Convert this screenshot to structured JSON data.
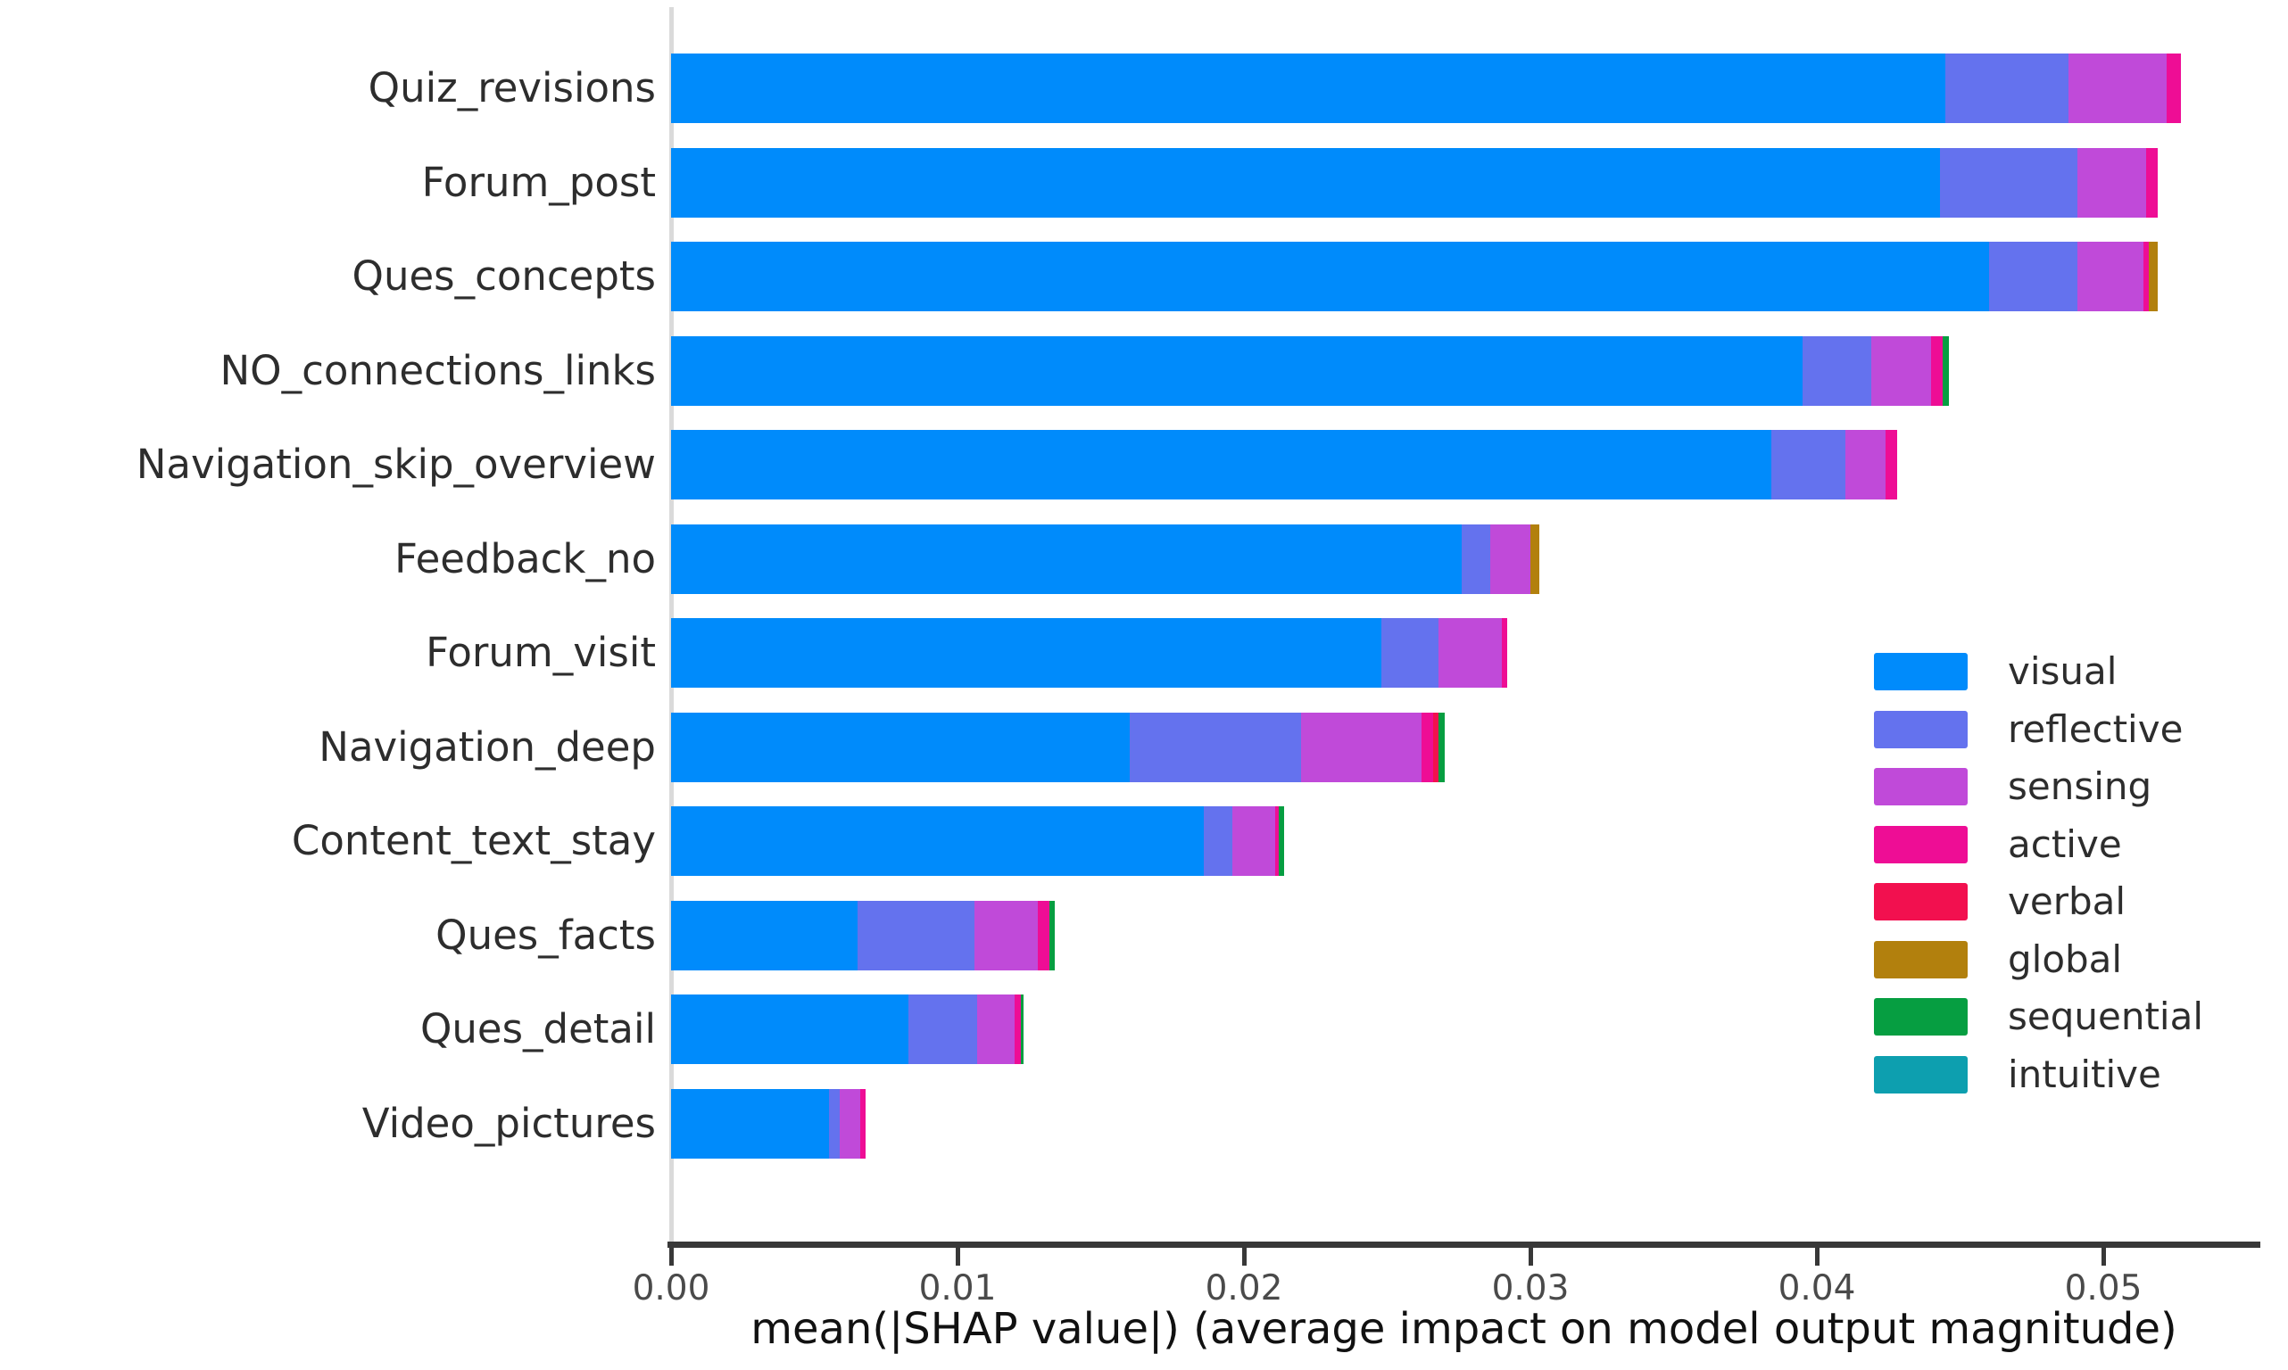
{
  "chart_data": {
    "type": "bar",
    "orientation": "horizontal",
    "stacked": true,
    "title": "",
    "xlabel": "mean(|SHAP value|) (average impact on model output magnitude)",
    "ylabel": "",
    "xlim": [
      0,
      0.0555
    ],
    "grid": false,
    "legend_position": "center-right",
    "x_tick_values": [
      0.0,
      0.01,
      0.02,
      0.03,
      0.04,
      0.05
    ],
    "x_tick_labels": [
      "0.00",
      "0.01",
      "0.02",
      "0.03",
      "0.04",
      "0.05"
    ],
    "categories": [
      "Quiz_revisions",
      "Forum_post",
      "Ques_concepts",
      "NO_connections_links",
      "Navigation_skip_overview",
      "Feedback_no",
      "Forum_visit",
      "Navigation_deep",
      "Content_text_stay",
      "Ques_facts",
      "Ques_detail",
      "Video_pictures"
    ],
    "series": [
      {
        "name": "visual",
        "color": "#008bfb",
        "values": [
          0.0445,
          0.0443,
          0.046,
          0.0395,
          0.0384,
          0.0276,
          0.0248,
          0.016,
          0.0186,
          0.0065,
          0.0083,
          0.0055
        ]
      },
      {
        "name": "reflective",
        "color": "#6472ee",
        "values": [
          0.0043,
          0.0048,
          0.0031,
          0.0024,
          0.0026,
          0.001,
          0.002,
          0.006,
          0.001,
          0.0041,
          0.0024,
          0.0004
        ]
      },
      {
        "name": "sensing",
        "color": "#c04ad9",
        "values": [
          0.0034,
          0.0024,
          0.0023,
          0.0021,
          0.0014,
          0.0014,
          0.0022,
          0.0042,
          0.0015,
          0.0022,
          0.0013,
          0.0007
        ]
      },
      {
        "name": "active",
        "color": "#ee0d95",
        "values": [
          0.0005,
          0.0004,
          0.0002,
          0.0004,
          0.0004,
          0.0,
          0.0002,
          0.0004,
          0.0001,
          0.0004,
          0.0002,
          0.0002
        ]
      },
      {
        "name": "verbal",
        "color": "#f2104f",
        "values": [
          0.0,
          0.0,
          0.0,
          0.0,
          0.0,
          0.0,
          0.0,
          0.0002,
          0.0,
          0.0,
          0.0,
          0.0
        ]
      },
      {
        "name": "global",
        "color": "#b2800d",
        "values": [
          0.0,
          0.0,
          0.0003,
          0.0,
          0.0,
          0.0003,
          0.0,
          0.0,
          0.0,
          0.0,
          0.0,
          0.0
        ]
      },
      {
        "name": "sequential",
        "color": "#069e41",
        "values": [
          0.0,
          0.0,
          0.0,
          0.0002,
          0.0,
          0.0,
          0.0,
          0.0002,
          0.0002,
          0.0002,
          0.0001,
          0.0
        ]
      },
      {
        "name": "intuitive",
        "color": "#0d9faf",
        "values": [
          0.0,
          0.0,
          0.0,
          0.0,
          0.0,
          0.0,
          0.0,
          0.0,
          0.0,
          0.0,
          0.0,
          0.0
        ]
      }
    ],
    "totals": [
      0.0527,
      0.0519,
      0.0519,
      0.0446,
      0.0428,
      0.0303,
      0.0292,
      0.027,
      0.0214,
      0.0134,
      0.0123,
      0.0068
    ]
  },
  "colors": {
    "axis_line": "#383838",
    "zero_gridline": "#dadada",
    "tick_label": "#4a4a4a",
    "category_label": "#2d2d2d",
    "background": "#ffffff"
  }
}
